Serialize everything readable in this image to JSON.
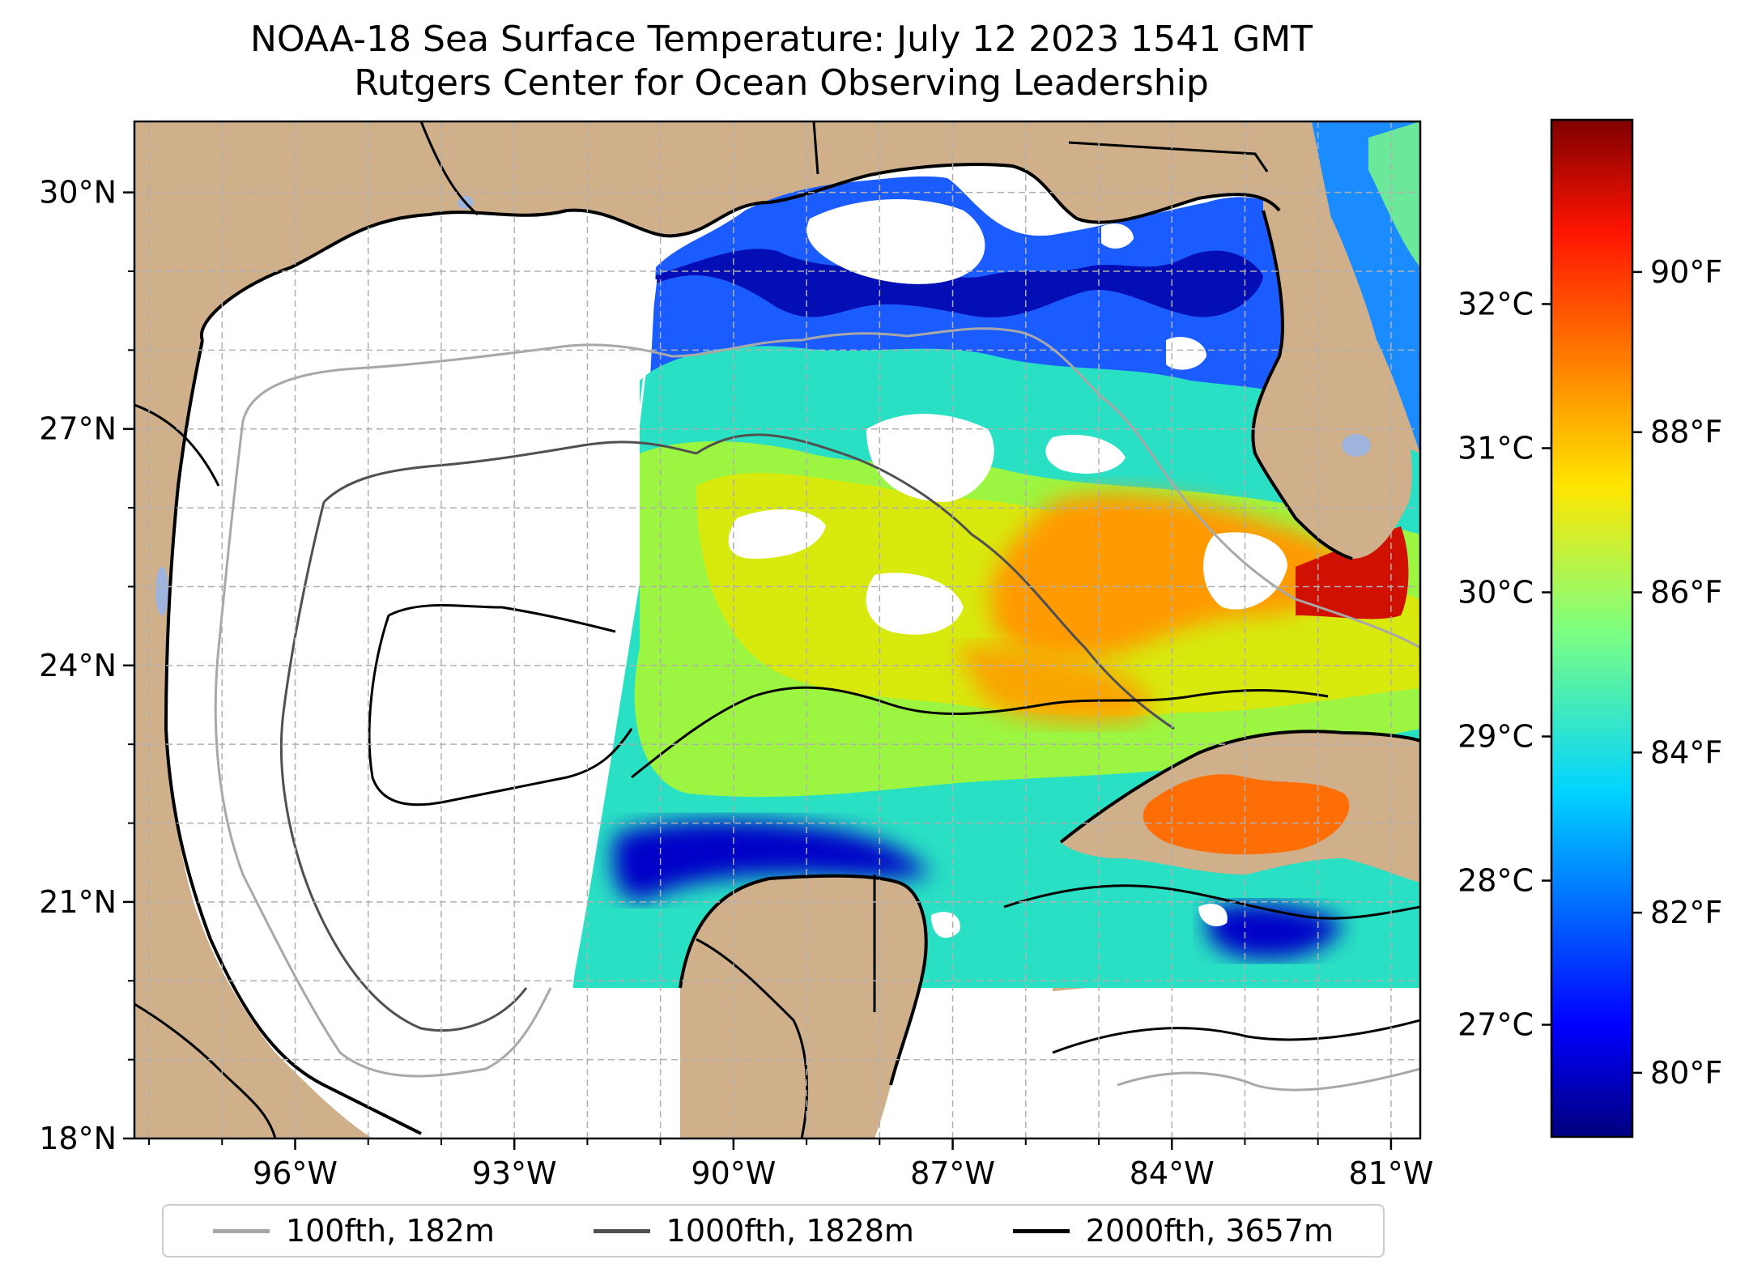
{
  "title": {
    "line1": "NOAA-18 Sea Surface Temperature: July 12 2023 1541 GMT",
    "line2": "Rutgers Center for Ocean Observing Leadership"
  },
  "axes": {
    "lon_range": [
      -98.2,
      -80.6
    ],
    "lat_range": [
      18.0,
      30.9
    ],
    "x_ticks": [
      "96°W",
      "93°W",
      "90°W",
      "87°W",
      "84°W",
      "81°W"
    ],
    "x_tick_values": [
      -96,
      -93,
      -90,
      -87,
      -84,
      -81
    ],
    "y_ticks": [
      "18°N",
      "21°N",
      "24°N",
      "27°N",
      "30°N"
    ],
    "y_tick_values": [
      18,
      21,
      24,
      27,
      30
    ],
    "grid": true
  },
  "colorbar": {
    "celsius_ticks": [
      "27°C",
      "28°C",
      "29°C",
      "30°C",
      "31°C",
      "32°C"
    ],
    "celsius_values": [
      27,
      28,
      29,
      30,
      31,
      32
    ],
    "fahrenheit_ticks": [
      "80°F",
      "82°F",
      "84°F",
      "86°F",
      "88°F",
      "90°F"
    ],
    "fahrenheit_values": [
      80,
      82,
      84,
      86,
      88,
      90
    ],
    "range_f": [
      79.2,
      91.9
    ],
    "colormap": "jet"
  },
  "legend": [
    {
      "label": "100fth, 182m",
      "color": "#a8a8a8"
    },
    {
      "label": "1000fth, 1828m",
      "color": "#505050"
    },
    {
      "label": "2000fth, 3657m",
      "color": "#000000"
    }
  ],
  "colors": {
    "land": "#cfb08a",
    "ocean_no_data": "#ffffff",
    "lakes": "#9fb4dc",
    "grid": "#b0b0b0"
  }
}
